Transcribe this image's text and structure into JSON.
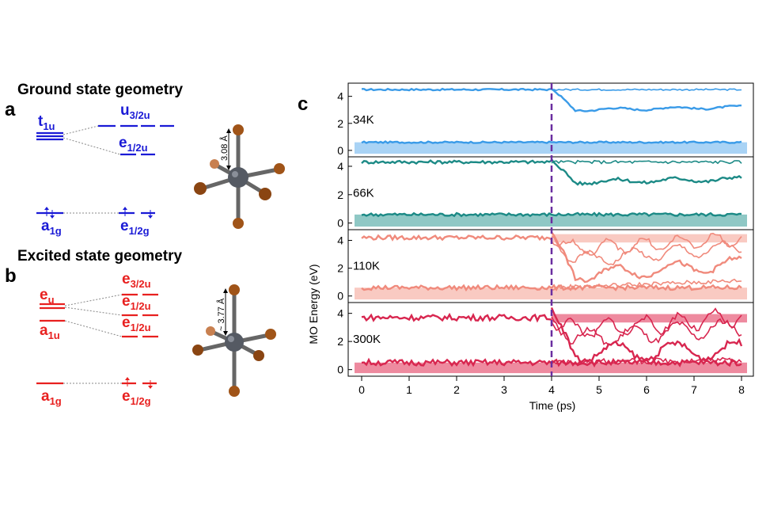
{
  "panel_a": {
    "letter": "a",
    "title": "Ground state geometry",
    "t1u": {
      "main": "t",
      "sub": "1u"
    },
    "u32": {
      "main": "u",
      "sub": "3/2u"
    },
    "e12u": {
      "main": "e",
      "sub": "1/2u"
    },
    "a1g": {
      "main": "a",
      "sub": "1g"
    },
    "e12g": {
      "main": "e",
      "sub": "1/2g"
    },
    "bond": "3.08 Å",
    "color": "#1a1ad6"
  },
  "panel_b": {
    "letter": "b",
    "title": "Excited state geometry",
    "eu": {
      "main": "e",
      "sub": "u"
    },
    "a1u": {
      "main": "a",
      "sub": "1u"
    },
    "e32u": {
      "main": "e",
      "sub": "3/2u"
    },
    "e12u_1": {
      "main": "e",
      "sub": "1/2u"
    },
    "e12u_2": {
      "main": "e",
      "sub": "1/2u"
    },
    "a1g": {
      "main": "a",
      "sub": "1g"
    },
    "e12g": {
      "main": "e",
      "sub": "1/2g"
    },
    "bond": "~ 3.77 Å",
    "color": "#e8201f"
  },
  "panel_c": {
    "letter": "c",
    "xlabel": "Time (ps)",
    "ylabel": "MO Energy (eV)"
  },
  "chart_data": {
    "type": "line",
    "xlabel": "Time (ps)",
    "ylabel": "MO Energy (eV)",
    "xlim": [
      0,
      8
    ],
    "xticks": [
      0,
      1,
      2,
      3,
      4,
      5,
      6,
      7,
      8
    ],
    "yticks": [
      0,
      2,
      4
    ],
    "vline_x": 4,
    "vline_color": "#6a2ea0",
    "panels": [
      {
        "label": "34K",
        "color": "#3a9be8",
        "fill": "#8cc4f2",
        "ylim": [
          -0.3,
          4.8
        ],
        "levels_before": [
          4.5,
          0.6
        ],
        "after": [
          {
            "start": 4.5,
            "end": 3.2,
            "dip": 3.0
          },
          {
            "start": 4.5,
            "end": 4.5
          }
        ]
      },
      {
        "label": "66K",
        "color": "#1c8a86",
        "fill": "#6ab5b1",
        "ylim": [
          -0.3,
          4.5
        ],
        "levels_before": [
          4.3,
          0.6
        ],
        "after": [
          {
            "start": 4.3,
            "end": 3.1,
            "dip": 2.9
          },
          {
            "start": 4.3,
            "end": 4.3
          }
        ]
      },
      {
        "label": "110K",
        "color": "#f08a7c",
        "fill": "#f7b8ae",
        "ylim": [
          -0.3,
          4.6
        ],
        "levels_before": [
          4.2,
          0.6
        ],
        "after": [
          {
            "start": 4.2,
            "end": 2.3,
            "dip": 1.5
          },
          {
            "start": 4.2,
            "end": 3.5,
            "dip": 2.6
          },
          {
            "start": 4.2,
            "end": 4.1,
            "dip": 3.4
          },
          {
            "start": 0.6,
            "end": 1.1
          }
        ]
      },
      {
        "label": "300K",
        "color": "#d8264f",
        "fill": "#e8637f",
        "ylim": [
          -0.3,
          4.6
        ],
        "levels_before": [
          3.7,
          0.5
        ],
        "after": [
          {
            "start": 3.7,
            "end": 1.4,
            "dip": 1.2
          },
          {
            "start": 3.7,
            "end": 3.0,
            "dip": 2.2
          },
          {
            "start": 3.7,
            "end": 3.7,
            "dip": 2.8
          },
          {
            "start": 0.5,
            "end": 0.7
          }
        ]
      }
    ]
  }
}
